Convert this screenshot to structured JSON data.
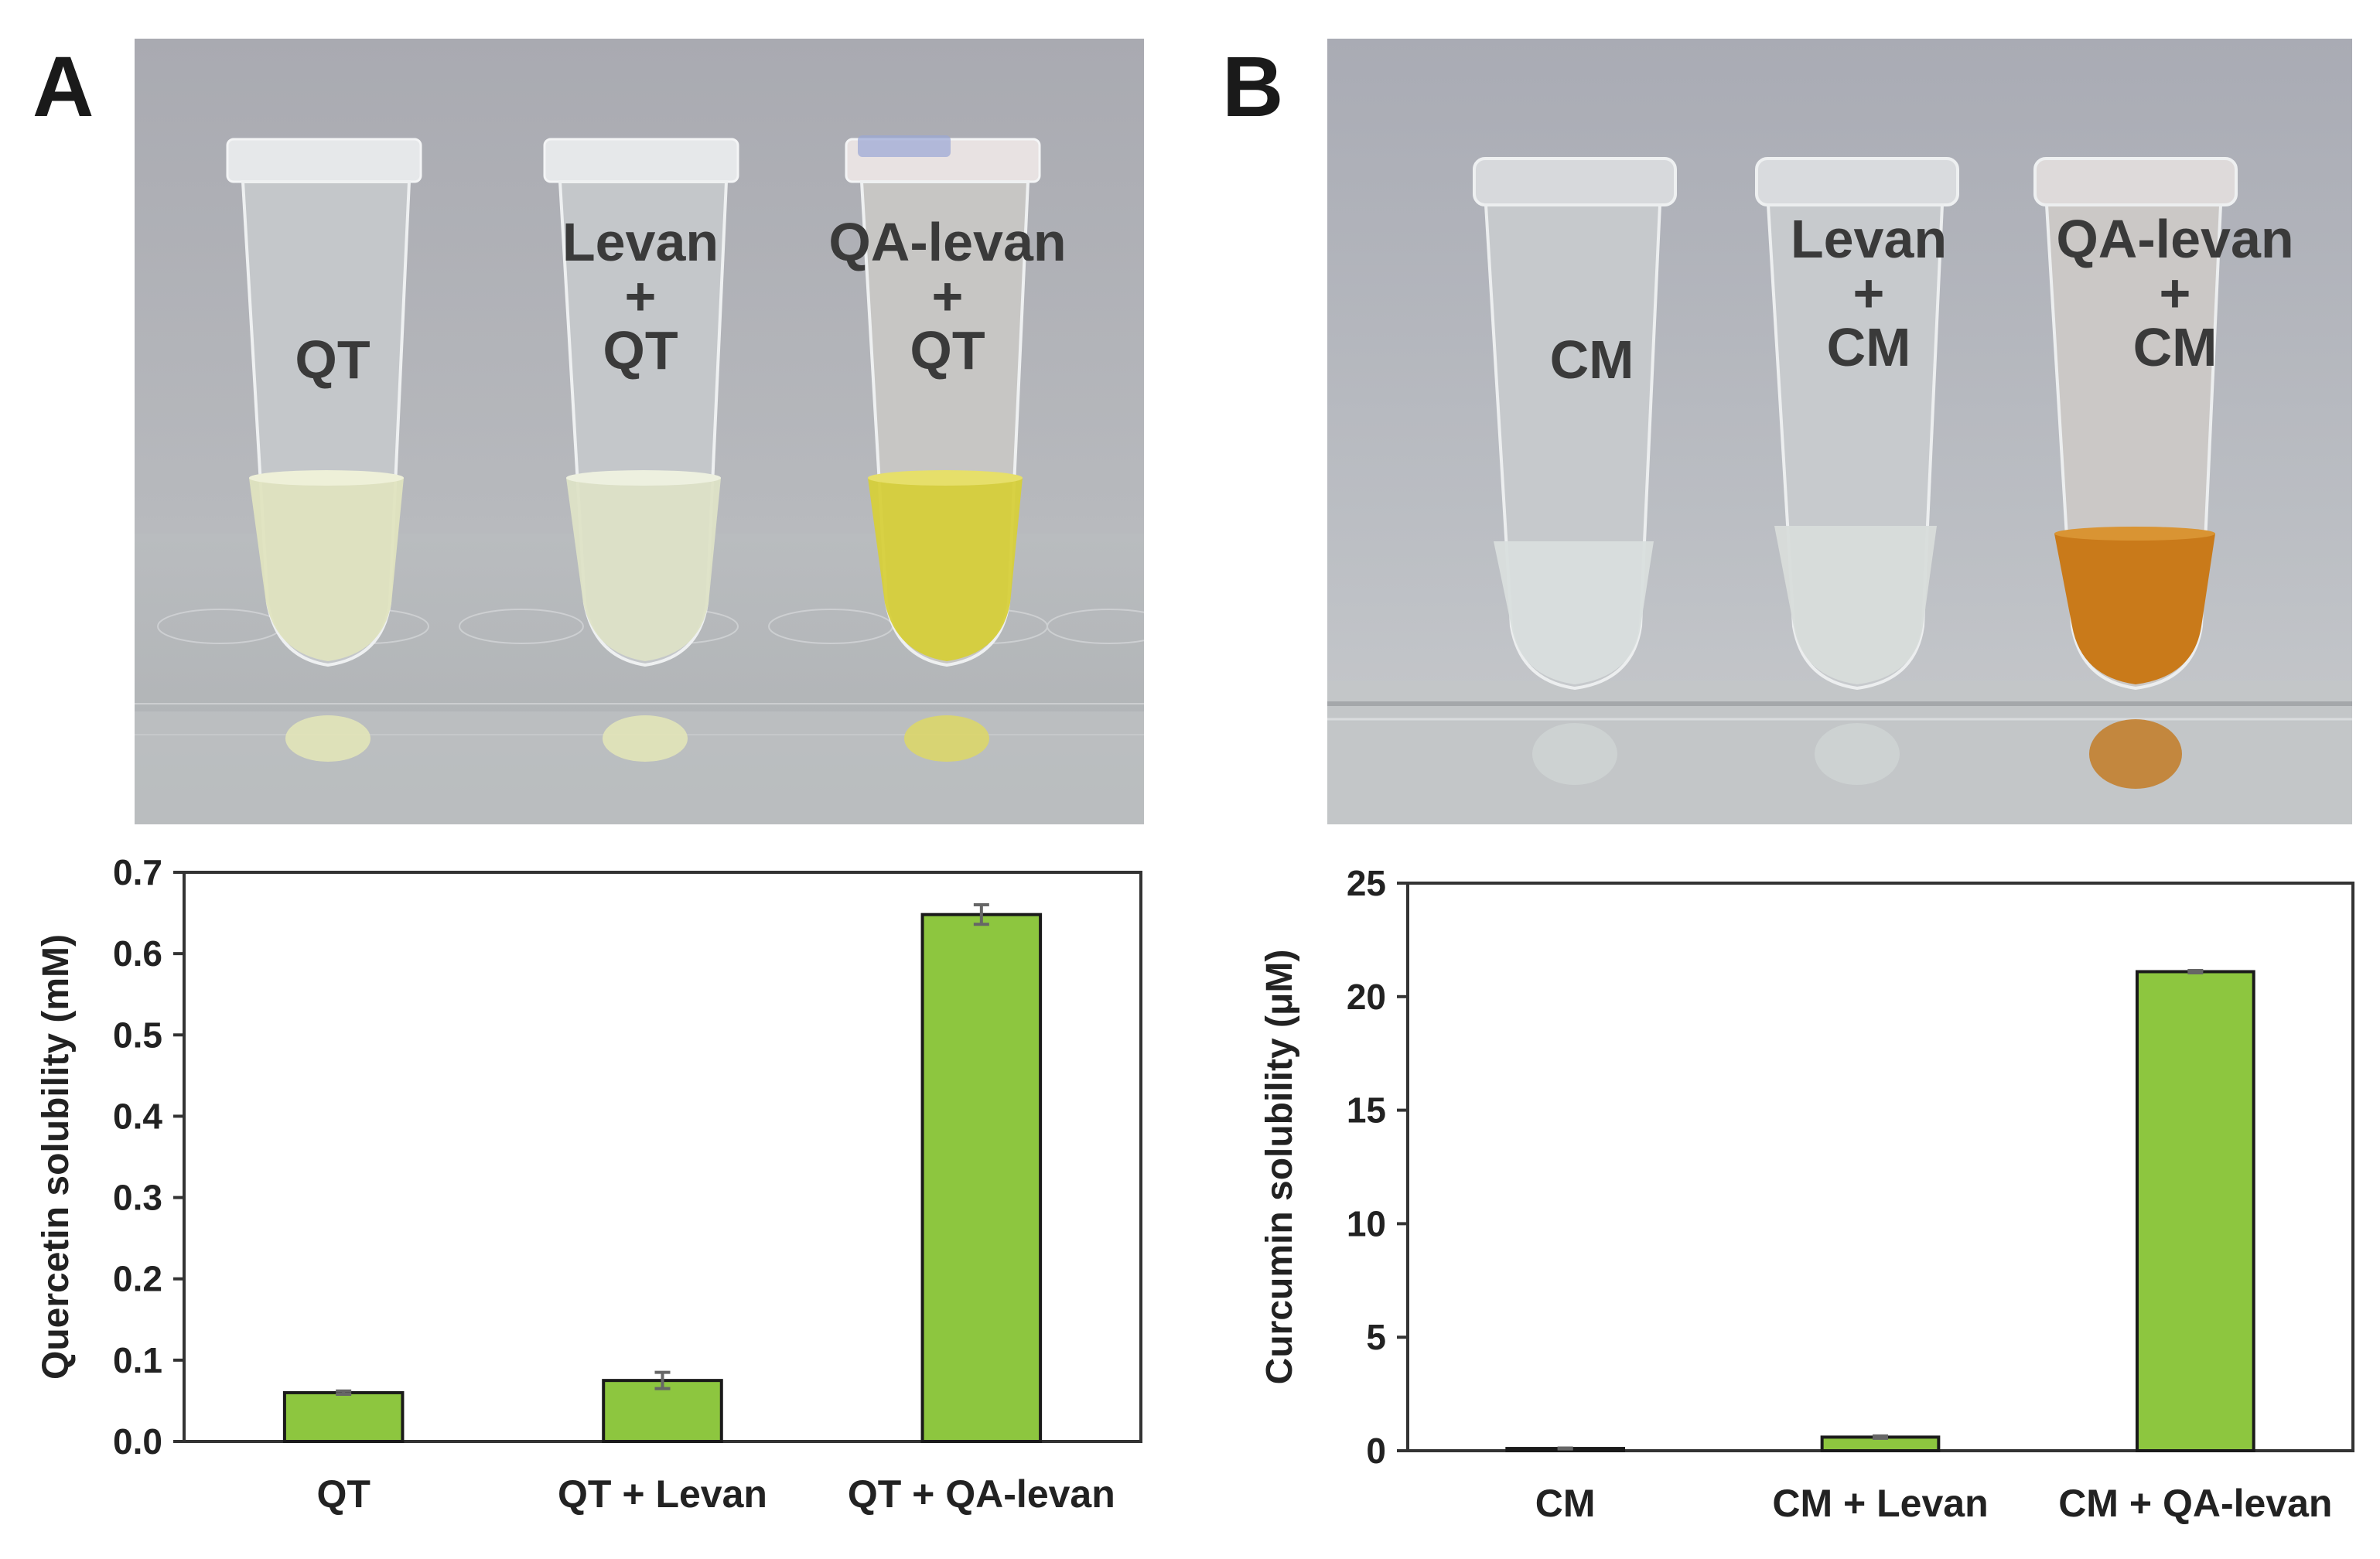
{
  "panels": {
    "A": {
      "letter": "A",
      "photo": {
        "tube_labels": [
          {
            "lines": [
              "QT"
            ]
          },
          {
            "lines": [
              "Levan",
              "+",
              "QT"
            ]
          },
          {
            "lines": [
              "QA-levan",
              "+",
              "QT"
            ]
          }
        ],
        "liquid_colors": [
          "#dfe3bf",
          "#dde2c6",
          "#d6cf3a"
        ]
      }
    },
    "B": {
      "letter": "B",
      "photo": {
        "tube_labels": [
          {
            "lines": [
              "CM"
            ]
          },
          {
            "lines": [
              "Levan",
              "+",
              "CM"
            ]
          },
          {
            "lines": [
              "QA-levan",
              "+",
              "CM"
            ]
          }
        ],
        "liquid_colors": [
          "#d9dedd",
          "#d8dcda",
          "#c97a1a"
        ]
      }
    }
  },
  "chart_data": [
    {
      "type": "bar",
      "categories": [
        "QT",
        "QT + Levan",
        "QT + QA-levan"
      ],
      "values": [
        0.06,
        0.075,
        0.648
      ],
      "errors": [
        0.002,
        0.01,
        0.012
      ],
      "xlabel": "",
      "ylabel": "Quercetin solubility (mM)",
      "ylim": [
        0,
        0.7
      ],
      "yticks": [
        "0.0",
        "0.1",
        "0.2",
        "0.3",
        "0.4",
        "0.5",
        "0.6",
        "0.7"
      ],
      "bar_color": "#8dc63f",
      "grid": false
    },
    {
      "type": "bar",
      "categories": [
        "CM",
        "CM + Levan",
        "CM + QA-levan"
      ],
      "values": [
        0.1,
        0.6,
        21.1
      ],
      "errors": [
        0.02,
        0.05,
        0.05
      ],
      "xlabel": "",
      "ylabel": "Curcumin solubility (μM)",
      "ylim": [
        0,
        25
      ],
      "yticks": [
        "0",
        "5",
        "10",
        "15",
        "20",
        "25"
      ],
      "bar_color": "#8dc63f",
      "grid": false
    }
  ]
}
